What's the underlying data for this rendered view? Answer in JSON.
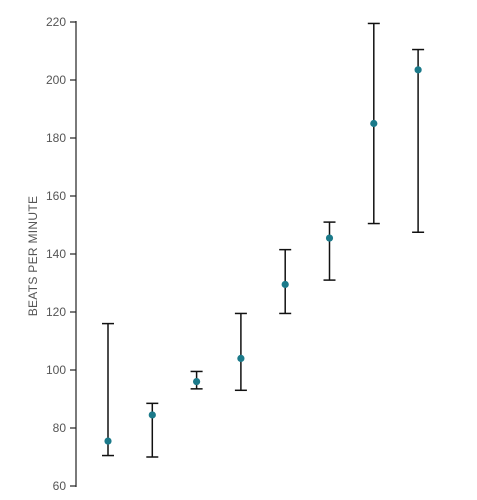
{
  "chart_data": {
    "type": "scatter",
    "title": "",
    "xlabel": "",
    "ylabel": "BEATS PER MINUTE",
    "ylim": [
      60,
      220
    ],
    "yticks": [
      60,
      80,
      100,
      120,
      140,
      160,
      180,
      200,
      220
    ],
    "grid": false,
    "legend": "none",
    "point_color": "#1b7a8a",
    "error_bar_color": "#111111",
    "axis_color": "#222222",
    "points": [
      {
        "x": 1,
        "y": 75.5,
        "low": 70.5,
        "high": 116
      },
      {
        "x": 2,
        "y": 84.5,
        "low": 70,
        "high": 88.5
      },
      {
        "x": 3,
        "y": 96,
        "low": 93.5,
        "high": 99.5
      },
      {
        "x": 4,
        "y": 104,
        "low": 93,
        "high": 119.5
      },
      {
        "x": 5,
        "y": 129.5,
        "low": 119.5,
        "high": 141.5
      },
      {
        "x": 6,
        "y": 145.5,
        "low": 131,
        "high": 151
      },
      {
        "x": 7,
        "y": 185,
        "low": 150.5,
        "high": 219.5
      },
      {
        "x": 8,
        "y": 203.5,
        "low": 147.5,
        "high": 210.5
      }
    ]
  }
}
